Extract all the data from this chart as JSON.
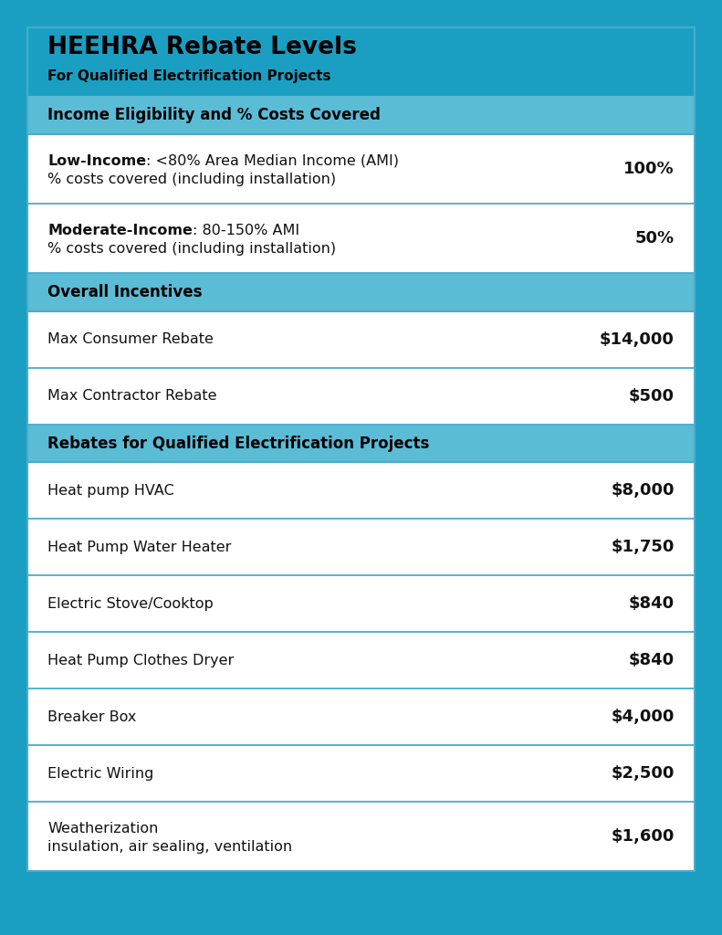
{
  "title": "HEEHRA Rebate Levels",
  "subtitle": "For Qualified Electrification Projects",
  "header_bg": "#1a9fc2",
  "section_bg": "#5bbcd6",
  "row_bg": "#ffffff",
  "border_color": "#4aabcc",
  "outer_bg": "#1a9fc2",
  "footer_bg": "#2e7d6e",
  "title_color": "#000000",
  "subtitle_color": "#000000",
  "section_text_color": "#000000",
  "row_text_color": "#111111",
  "sections": [
    {
      "header": "Income Eligibility and % Costs Covered",
      "rows": [
        {
          "label_bold": "Low-Income",
          "label_rest": ": <80% Area Median Income (AMI)",
          "label_line2": "% costs covered (including installation)",
          "value": "100%"
        },
        {
          "label_bold": "Moderate-Income",
          "label_rest": ": 80-150% AMI",
          "label_line2": "% costs covered (including installation)",
          "value": "50%"
        }
      ]
    },
    {
      "header": "Overall Incentives",
      "rows": [
        {
          "label_bold": "",
          "label_rest": "Max Consumer Rebate",
          "label_line2": "",
          "value": "$14,000"
        },
        {
          "label_bold": "",
          "label_rest": "Max Contractor Rebate",
          "label_line2": "",
          "value": "$500"
        }
      ]
    },
    {
      "header": "Rebates for Qualified Electrification Projects",
      "rows": [
        {
          "label_bold": "",
          "label_rest": "Heat pump HVAC",
          "label_line2": "",
          "value": "$8,000"
        },
        {
          "label_bold": "",
          "label_rest": "Heat Pump Water Heater",
          "label_line2": "",
          "value": "$1,750"
        },
        {
          "label_bold": "",
          "label_rest": "Electric Stove/Cooktop",
          "label_line2": "",
          "value": "$840"
        },
        {
          "label_bold": "",
          "label_rest": "Heat Pump Clothes Dryer",
          "label_line2": "",
          "value": "$840"
        },
        {
          "label_bold": "",
          "label_rest": "Breaker Box",
          "label_line2": "",
          "value": "$4,000"
        },
        {
          "label_bold": "",
          "label_rest": "Electric Wiring",
          "label_line2": "",
          "value": "$2,500"
        },
        {
          "label_bold": "",
          "label_rest": "Weatherization",
          "label_line2": "insulation, air sealing, ventilation",
          "value": "$1,600"
        }
      ]
    }
  ],
  "fig_width": 7.91,
  "fig_height": 10.24,
  "dpi": 100
}
